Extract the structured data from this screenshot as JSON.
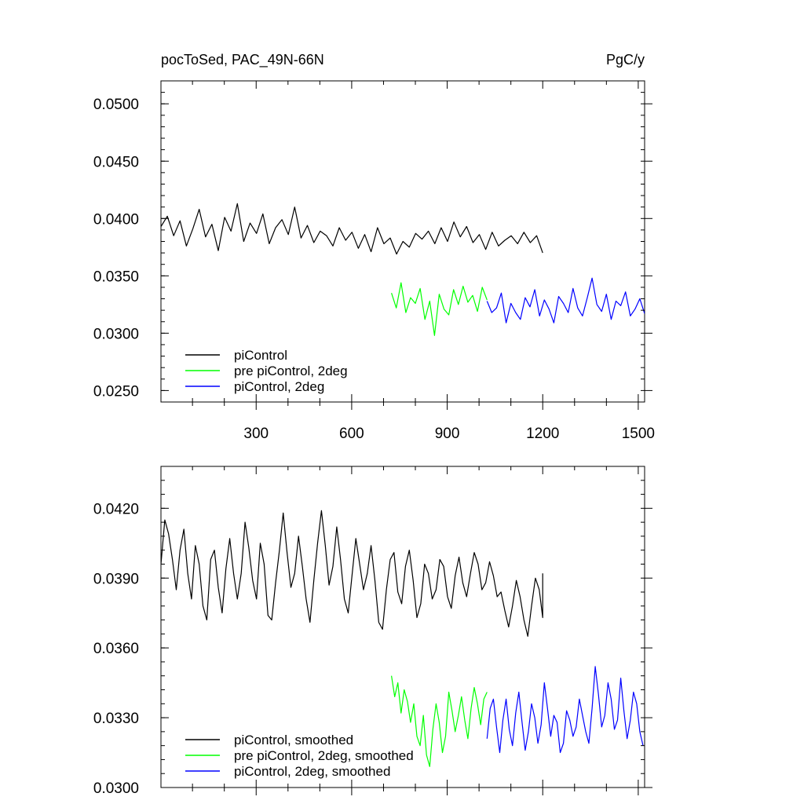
{
  "chart_data": [
    {
      "type": "line",
      "title_left": "pocToSed, PAC_49N-66N",
      "title_right": "PgC/y",
      "xlabel": "",
      "ylabel": "",
      "xlim": [
        1,
        1520
      ],
      "ylim": [
        0.024,
        0.052
      ],
      "x_ticks": [
        300,
        600,
        900,
        1200,
        1500
      ],
      "y_ticks": [
        0.025,
        0.03,
        0.035,
        0.04,
        0.045,
        0.05
      ],
      "y_tick_labels": [
        "0.0250",
        "0.0300",
        "0.0350",
        "0.0400",
        "0.0450",
        "0.0500"
      ],
      "legend": "bottom-left",
      "grid": false,
      "series": [
        {
          "name": "piControl",
          "color": "#000000",
          "x_range": [
            1,
            1200
          ],
          "step": 20,
          "values": [
            0.0393,
            0.0402,
            0.0385,
            0.0398,
            0.0376,
            0.0391,
            0.0408,
            0.0384,
            0.0395,
            0.0372,
            0.0401,
            0.0389,
            0.0413,
            0.038,
            0.0396,
            0.0387,
            0.0404,
            0.0378,
            0.0392,
            0.0399,
            0.0386,
            0.041,
            0.0383,
            0.0394,
            0.0379,
            0.0389,
            0.0385,
            0.0376,
            0.0392,
            0.0381,
            0.0388,
            0.0374,
            0.0386,
            0.0371,
            0.0392,
            0.0378,
            0.0383,
            0.0369,
            0.038,
            0.0375,
            0.0387,
            0.0382,
            0.0389,
            0.0378,
            0.0392,
            0.038,
            0.0397,
            0.0384,
            0.0393,
            0.0379,
            0.0386,
            0.0373,
            0.0388,
            0.0376,
            0.0381,
            0.0385,
            0.0378,
            0.0388,
            0.0379,
            0.0385,
            0.037
          ]
        },
        {
          "name": "pre piControl, 2deg",
          "color": "#00ff00",
          "x_range": [
            725,
            1025
          ],
          "step": 15,
          "values": [
            0.0335,
            0.0322,
            0.0344,
            0.0318,
            0.0331,
            0.0326,
            0.0339,
            0.0312,
            0.0328,
            0.0298,
            0.0334,
            0.0321,
            0.0316,
            0.0338,
            0.0325,
            0.0341,
            0.0327,
            0.0333,
            0.0319,
            0.034,
            0.0329
          ]
        },
        {
          "name": "piControl, 2deg",
          "color": "#0000ff",
          "x_range": [
            1025,
            1520
          ],
          "step": 15,
          "values": [
            0.0328,
            0.0318,
            0.0322,
            0.0335,
            0.0309,
            0.0326,
            0.0318,
            0.0312,
            0.0331,
            0.0323,
            0.0338,
            0.0315,
            0.0329,
            0.0321,
            0.0309,
            0.0332,
            0.0326,
            0.0318,
            0.0339,
            0.0322,
            0.0315,
            0.0331,
            0.0348,
            0.0325,
            0.0319,
            0.0334,
            0.0312,
            0.0328,
            0.0324,
            0.0336,
            0.0315,
            0.0321,
            0.033,
            0.0317
          ]
        }
      ]
    },
    {
      "type": "line",
      "title_left": "",
      "title_right": "",
      "xlabel": "",
      "ylabel": "",
      "xlim": [
        1,
        1520
      ],
      "ylim": [
        0.03,
        0.0438
      ],
      "x_ticks": [
        300,
        600,
        900,
        1200,
        1500
      ],
      "y_ticks": [
        0.03,
        0.033,
        0.036,
        0.039,
        0.042
      ],
      "y_tick_labels": [
        "0.0300",
        "0.0330",
        "0.0360",
        "0.0390",
        "0.0420"
      ],
      "legend": "bottom-left",
      "grid": false,
      "series": [
        {
          "name": "piControl, smoothed",
          "color": "#000000",
          "x_range": [
            1,
            1200
          ],
          "step": 12,
          "values": [
            0.0396,
            0.0415,
            0.0409,
            0.0398,
            0.0385,
            0.0402,
            0.0411,
            0.0392,
            0.0381,
            0.0404,
            0.0396,
            0.0378,
            0.0372,
            0.0398,
            0.0402,
            0.0386,
            0.0375,
            0.0394,
            0.0407,
            0.0392,
            0.0381,
            0.0392,
            0.0414,
            0.0403,
            0.0389,
            0.0381,
            0.0405,
            0.0396,
            0.0374,
            0.0372,
            0.0388,
            0.0402,
            0.0418,
            0.0401,
            0.0386,
            0.0392,
            0.0408,
            0.0395,
            0.0381,
            0.0371,
            0.0389,
            0.0405,
            0.0419,
            0.0404,
            0.0387,
            0.0395,
            0.0412,
            0.0398,
            0.0381,
            0.0375,
            0.0391,
            0.0407,
            0.0396,
            0.0385,
            0.0392,
            0.0404,
            0.0389,
            0.0371,
            0.0368,
            0.0385,
            0.0398,
            0.0401,
            0.0384,
            0.0379,
            0.0395,
            0.0402,
            0.0389,
            0.0373,
            0.0379,
            0.0396,
            0.0392,
            0.0381,
            0.0385,
            0.0398,
            0.0395,
            0.0382,
            0.0377,
            0.0391,
            0.0399,
            0.0388,
            0.0382,
            0.0392,
            0.0401,
            0.0396,
            0.0385,
            0.0388,
            0.0397,
            0.0391,
            0.0382,
            0.0384,
            0.0376,
            0.0369,
            0.0378,
            0.0389,
            0.0382,
            0.0372,
            0.0365,
            0.0378,
            0.039,
            0.0385,
            0.0373,
            0.0392
          ]
        },
        {
          "name": "pre piControl, 2deg, smoothed",
          "color": "#00ff00",
          "x_range": [
            725,
            1025
          ],
          "step": 10,
          "values": [
            0.0348,
            0.0339,
            0.0345,
            0.0332,
            0.0342,
            0.0337,
            0.0328,
            0.0336,
            0.0322,
            0.0318,
            0.0331,
            0.0314,
            0.0309,
            0.0325,
            0.0336,
            0.0328,
            0.0315,
            0.0322,
            0.0341,
            0.0333,
            0.0324,
            0.0331,
            0.0339,
            0.0329,
            0.0321,
            0.0334,
            0.0343,
            0.0336,
            0.0327,
            0.0338,
            0.0341
          ]
        },
        {
          "name": "piControl, 2deg, smoothed",
          "color": "#0000ff",
          "x_range": [
            1025,
            1520
          ],
          "step": 10,
          "values": [
            0.0321,
            0.0334,
            0.0338,
            0.0326,
            0.0315,
            0.0329,
            0.0338,
            0.0325,
            0.0318,
            0.0332,
            0.0341,
            0.0328,
            0.0316,
            0.0324,
            0.0336,
            0.033,
            0.0319,
            0.0327,
            0.0345,
            0.0334,
            0.0322,
            0.0331,
            0.0328,
            0.0315,
            0.0319,
            0.0333,
            0.0329,
            0.0322,
            0.0326,
            0.0338,
            0.0331,
            0.0324,
            0.0319,
            0.0334,
            0.0352,
            0.034,
            0.0326,
            0.0331,
            0.0345,
            0.0338,
            0.0325,
            0.0329,
            0.0347,
            0.0333,
            0.0321,
            0.0329,
            0.0341,
            0.0336,
            0.0324,
            0.0318
          ]
        }
      ]
    }
  ]
}
